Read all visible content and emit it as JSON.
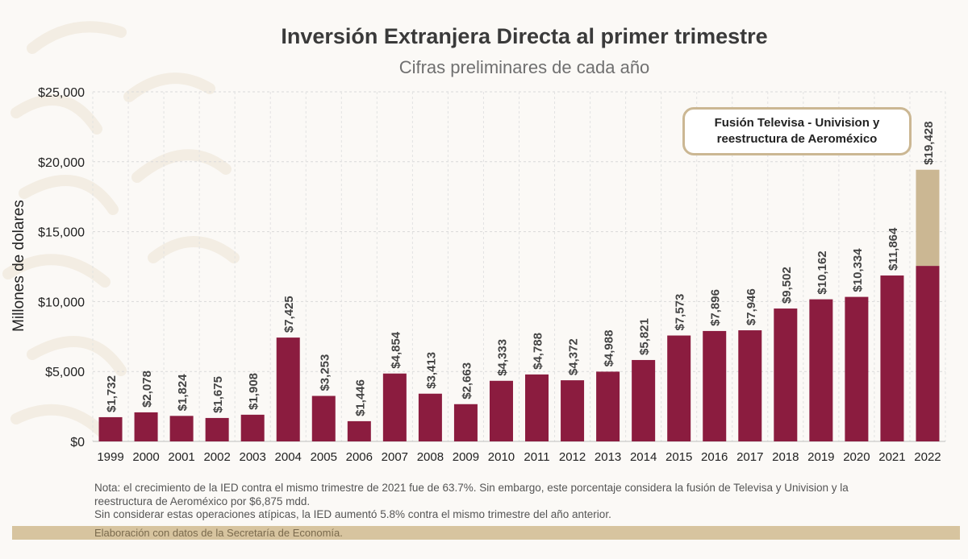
{
  "chart_data": {
    "type": "bar",
    "title": "Inversión Extranjera Directa al primer trimestre",
    "subtitle": "Cifras preliminares de cada año",
    "ylabel": "Millones de dolares",
    "xlabel": "",
    "ylim": [
      0,
      25000
    ],
    "yticks": [
      0,
      5000,
      10000,
      15000,
      20000,
      25000
    ],
    "ytick_labels": [
      "$0",
      "$5,000",
      "$10,000",
      "$15,000",
      "$20,000",
      "$25,000"
    ],
    "grid": true,
    "categories": [
      "1999",
      "2000",
      "2001",
      "2002",
      "2003",
      "2004",
      "2005",
      "2006",
      "2007",
      "2008",
      "2009",
      "2010",
      "2011",
      "2012",
      "2013",
      "2014",
      "2015",
      "2016",
      "2017",
      "2018",
      "2019",
      "2020",
      "2021",
      "2022"
    ],
    "values": [
      1732,
      2078,
      1824,
      1675,
      1908,
      7425,
      3253,
      1446,
      4854,
      3413,
      2663,
      4333,
      4788,
      4372,
      4988,
      5821,
      7573,
      7896,
      7946,
      9502,
      10162,
      10334,
      11864,
      19428
    ],
    "value_labels": [
      "$1,732",
      "$2,078",
      "$1,824",
      "$1,675",
      "$1,908",
      "$7,425",
      "$3,253",
      "$1,446",
      "$4,854",
      "$3,413",
      "$2,663",
      "$4,333",
      "$4,788",
      "$4,372",
      "$4,988",
      "$5,821",
      "$7,573",
      "$7,896",
      "$7,946",
      "$9,502",
      "$10,162",
      "$10,334",
      "$11,864",
      "$19,428"
    ],
    "atypical_component": {
      "category": "2022",
      "value": 6875
    },
    "annotation": "Fusión Televisa - Univision y reestructura de Aeroméxico"
  },
  "notes": {
    "line1": "Nota: el crecimiento de la IED contra el mismo trimestre de 2021 fue de 63.7%. Sin embargo, este porcentaje considera la fusión de Televisa y Univision y la reestructura de Aeroméxico por $6,875 mdd.",
    "line2": "Sin considerar estas operaciones atípicas, la IED aumentó 5.8% contra el mismo trimestre del año anterior.",
    "source": "Elaboración con datos de la Secretaría de Economía."
  },
  "colors": {
    "bar": "#8b1c3f",
    "atypical": "#cbb793",
    "gold": "#d7c49f"
  }
}
